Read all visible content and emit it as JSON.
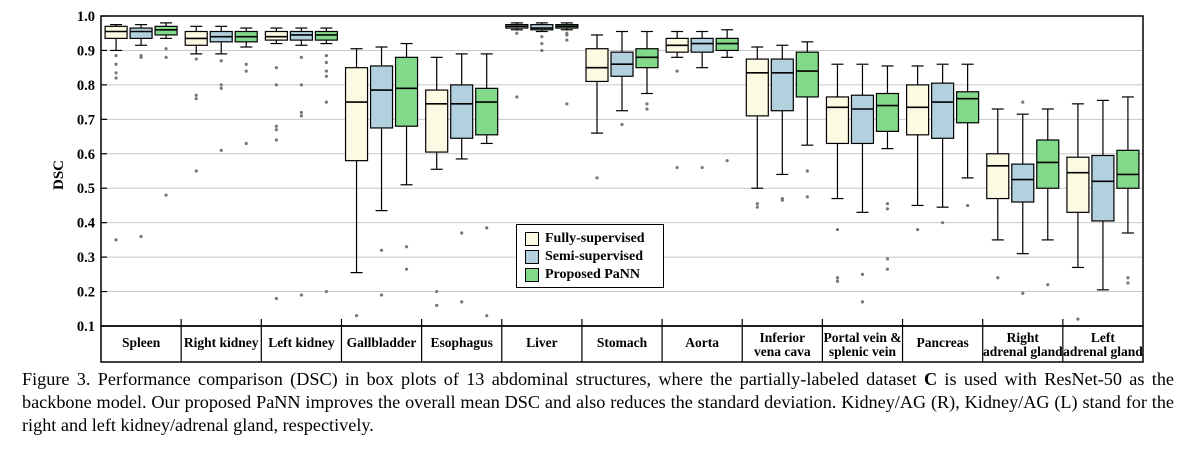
{
  "chart_data": {
    "type": "box",
    "ylabel": "DSC",
    "ylim": [
      0.1,
      1.0
    ],
    "yticks": [
      "0.1",
      "0.2",
      "0.3",
      "0.4",
      "0.5",
      "0.6",
      "0.7",
      "0.8",
      "0.9",
      "1.0"
    ],
    "grid": true,
    "legend_position": "inside-center",
    "categories": [
      {
        "lines": [
          "Spleen"
        ]
      },
      {
        "lines": [
          "Right kidney"
        ]
      },
      {
        "lines": [
          "Left kidney"
        ]
      },
      {
        "lines": [
          "Gallbladder"
        ]
      },
      {
        "lines": [
          "Esophagus"
        ]
      },
      {
        "lines": [
          "Liver"
        ]
      },
      {
        "lines": [
          "Stomach"
        ]
      },
      {
        "lines": [
          "Aorta"
        ]
      },
      {
        "lines": [
          "Inferior",
          "vena cava"
        ]
      },
      {
        "lines": [
          "Portal vein &",
          "splenic vein"
        ]
      },
      {
        "lines": [
          "Pancreas"
        ]
      },
      {
        "lines": [
          "Right",
          "adrenal gland"
        ]
      },
      {
        "lines": [
          "Left",
          "adrenal gland"
        ]
      }
    ],
    "series": [
      {
        "name": "Fully-supervised",
        "color": "#fcfae3",
        "boxes": [
          {
            "whislo": 0.9,
            "q1": 0.935,
            "med": 0.955,
            "q3": 0.97,
            "whishi": 0.975,
            "fliers": [
              0.885,
              0.86,
              0.835,
              0.82,
              0.35
            ]
          },
          {
            "whislo": 0.89,
            "q1": 0.915,
            "med": 0.935,
            "q3": 0.955,
            "whishi": 0.97,
            "fliers": [
              0.875,
              0.77,
              0.76,
              0.55
            ]
          },
          {
            "whislo": 0.92,
            "q1": 0.93,
            "med": 0.94,
            "q3": 0.955,
            "whishi": 0.965,
            "fliers": [
              0.85,
              0.8,
              0.68,
              0.67,
              0.64,
              0.18
            ]
          },
          {
            "whislo": 0.255,
            "q1": 0.58,
            "med": 0.75,
            "q3": 0.85,
            "whishi": 0.905,
            "fliers": [
              0.13
            ]
          },
          {
            "whislo": 0.555,
            "q1": 0.605,
            "med": 0.745,
            "q3": 0.785,
            "whishi": 0.88,
            "fliers": [
              0.2,
              0.16
            ]
          },
          {
            "whislo": 0.96,
            "q1": 0.965,
            "med": 0.97,
            "q3": 0.975,
            "whishi": 0.98,
            "fliers": [
              0.95,
              0.765
            ]
          },
          {
            "whislo": 0.66,
            "q1": 0.81,
            "med": 0.85,
            "q3": 0.905,
            "whishi": 0.945,
            "fliers": [
              0.53
            ]
          },
          {
            "whislo": 0.88,
            "q1": 0.895,
            "med": 0.915,
            "q3": 0.935,
            "whishi": 0.955,
            "fliers": [
              0.84,
              0.56
            ]
          },
          {
            "whislo": 0.5,
            "q1": 0.71,
            "med": 0.835,
            "q3": 0.875,
            "whishi": 0.91,
            "fliers": [
              0.455,
              0.445
            ]
          },
          {
            "whislo": 0.47,
            "q1": 0.63,
            "med": 0.735,
            "q3": 0.765,
            "whishi": 0.86,
            "fliers": [
              0.38,
              0.24,
              0.23
            ]
          },
          {
            "whislo": 0.45,
            "q1": 0.655,
            "med": 0.735,
            "q3": 0.8,
            "whishi": 0.855,
            "fliers": [
              0.38
            ]
          },
          {
            "whislo": 0.35,
            "q1": 0.47,
            "med": 0.565,
            "q3": 0.6,
            "whishi": 0.73,
            "fliers": [
              0.24
            ]
          },
          {
            "whislo": 0.27,
            "q1": 0.43,
            "med": 0.545,
            "q3": 0.59,
            "whishi": 0.745,
            "fliers": [
              0.12
            ]
          }
        ]
      },
      {
        "name": "Semi-supervised",
        "color": "#b2d0de",
        "boxes": [
          {
            "whislo": 0.915,
            "q1": 0.935,
            "med": 0.955,
            "q3": 0.965,
            "whishi": 0.975,
            "fliers": [
              0.885,
              0.88,
              0.36
            ]
          },
          {
            "whislo": 0.89,
            "q1": 0.925,
            "med": 0.94,
            "q3": 0.955,
            "whishi": 0.97,
            "fliers": [
              0.87,
              0.8,
              0.79,
              0.61
            ]
          },
          {
            "whislo": 0.915,
            "q1": 0.93,
            "med": 0.945,
            "q3": 0.955,
            "whishi": 0.965,
            "fliers": [
              0.88,
              0.8,
              0.72,
              0.71,
              0.19
            ]
          },
          {
            "whislo": 0.435,
            "q1": 0.675,
            "med": 0.785,
            "q3": 0.855,
            "whishi": 0.91,
            "fliers": [
              0.32,
              0.19
            ]
          },
          {
            "whislo": 0.585,
            "q1": 0.645,
            "med": 0.745,
            "q3": 0.8,
            "whishi": 0.89,
            "fliers": [
              0.37,
              0.17
            ]
          },
          {
            "whislo": 0.955,
            "q1": 0.96,
            "med": 0.965,
            "q3": 0.975,
            "whishi": 0.98,
            "fliers": [
              0.94,
              0.92,
              0.9
            ]
          },
          {
            "whislo": 0.725,
            "q1": 0.825,
            "med": 0.86,
            "q3": 0.895,
            "whishi": 0.955,
            "fliers": [
              0.685
            ]
          },
          {
            "whislo": 0.85,
            "q1": 0.895,
            "med": 0.92,
            "q3": 0.935,
            "whishi": 0.955,
            "fliers": [
              0.56
            ]
          },
          {
            "whislo": 0.54,
            "q1": 0.725,
            "med": 0.835,
            "q3": 0.875,
            "whishi": 0.915,
            "fliers": [
              0.47,
              0.465
            ]
          },
          {
            "whislo": 0.43,
            "q1": 0.63,
            "med": 0.73,
            "q3": 0.77,
            "whishi": 0.86,
            "fliers": [
              0.25,
              0.17
            ]
          },
          {
            "whislo": 0.445,
            "q1": 0.645,
            "med": 0.75,
            "q3": 0.805,
            "whishi": 0.86,
            "fliers": [
              0.4
            ]
          },
          {
            "whislo": 0.31,
            "q1": 0.46,
            "med": 0.525,
            "q3": 0.57,
            "whishi": 0.715,
            "fliers": [
              0.75,
              0.195
            ]
          },
          {
            "whislo": 0.205,
            "q1": 0.405,
            "med": 0.52,
            "q3": 0.595,
            "whishi": 0.755,
            "fliers": []
          }
        ]
      },
      {
        "name": "Proposed PaNN",
        "color": "#82d98a",
        "boxes": [
          {
            "whislo": 0.935,
            "q1": 0.945,
            "med": 0.96,
            "q3": 0.97,
            "whishi": 0.98,
            "fliers": [
              0.905,
              0.88,
              0.48
            ]
          },
          {
            "whislo": 0.91,
            "q1": 0.925,
            "med": 0.94,
            "q3": 0.955,
            "whishi": 0.965,
            "fliers": [
              0.86,
              0.84,
              0.63
            ]
          },
          {
            "whislo": 0.92,
            "q1": 0.93,
            "med": 0.945,
            "q3": 0.955,
            "whishi": 0.965,
            "fliers": [
              0.885,
              0.865,
              0.84,
              0.825,
              0.75,
              0.2
            ]
          },
          {
            "whislo": 0.51,
            "q1": 0.68,
            "med": 0.79,
            "q3": 0.88,
            "whishi": 0.92,
            "fliers": [
              0.33,
              0.265
            ]
          },
          {
            "whislo": 0.63,
            "q1": 0.655,
            "med": 0.75,
            "q3": 0.79,
            "whishi": 0.89,
            "fliers": [
              0.385,
              0.13
            ]
          },
          {
            "whislo": 0.96,
            "q1": 0.965,
            "med": 0.97,
            "q3": 0.975,
            "whishi": 0.98,
            "fliers": [
              0.95,
              0.945,
              0.93,
              0.745
            ]
          },
          {
            "whislo": 0.775,
            "q1": 0.85,
            "med": 0.88,
            "q3": 0.905,
            "whishi": 0.955,
            "fliers": [
              0.745,
              0.73
            ]
          },
          {
            "whislo": 0.88,
            "q1": 0.9,
            "med": 0.92,
            "q3": 0.935,
            "whishi": 0.96,
            "fliers": [
              0.58
            ]
          },
          {
            "whislo": 0.625,
            "q1": 0.765,
            "med": 0.84,
            "q3": 0.895,
            "whishi": 0.925,
            "fliers": [
              0.55,
              0.475
            ]
          },
          {
            "whislo": 0.615,
            "q1": 0.665,
            "med": 0.74,
            "q3": 0.775,
            "whishi": 0.855,
            "fliers": [
              0.455,
              0.44,
              0.295,
              0.265
            ]
          },
          {
            "whislo": 0.53,
            "q1": 0.69,
            "med": 0.76,
            "q3": 0.78,
            "whishi": 0.86,
            "fliers": [
              0.45
            ]
          },
          {
            "whislo": 0.35,
            "q1": 0.5,
            "med": 0.575,
            "q3": 0.64,
            "whishi": 0.73,
            "fliers": [
              0.22
            ]
          },
          {
            "whislo": 0.37,
            "q1": 0.5,
            "med": 0.54,
            "q3": 0.61,
            "whishi": 0.765,
            "fliers": [
              0.24,
              0.225
            ]
          }
        ]
      }
    ]
  },
  "caption": {
    "prefix": "Figure 3. Performance comparison (DSC) in box plots of 13 abdominal structures, where the partially-labeled dataset ",
    "dataset": "C",
    "suffix": " is used with ResNet-50 as the backbone model.  Our proposed PaNN improves the overall mean DSC and also reduces the standard deviation.  Kidney/AG (R), Kidney/AG (L) stand for the right and left kidney/adrenal gland, respectively."
  }
}
